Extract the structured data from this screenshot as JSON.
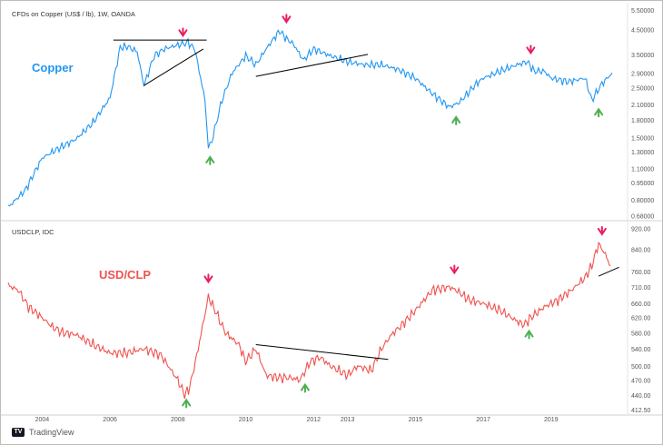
{
  "chart_data": [
    {
      "type": "line",
      "header": "CFDs on Copper (US$ / lb), 1W, OANDA",
      "series_label": "Copper",
      "color": "#2196F3",
      "scale": "log",
      "y_ticks": [
        "5.50000",
        "4.50000",
        "3.50000",
        "2.90000",
        "2.50000",
        "2.10000",
        "1.80000",
        "1.50000",
        "1.30000",
        "1.10000",
        "0.95000",
        "0.80000",
        "0.68000"
      ],
      "y_tick_values": [
        5.5,
        4.5,
        3.5,
        2.9,
        2.5,
        2.1,
        1.8,
        1.5,
        1.3,
        1.1,
        0.95,
        0.8,
        0.68
      ],
      "ylim": [
        0.67,
        5.6
      ],
      "x": [
        2003.0,
        2003.5,
        2004.0,
        2004.5,
        2005.0,
        2005.5,
        2006.0,
        2006.3,
        2006.5,
        2006.8,
        2007.0,
        2007.3,
        2007.6,
        2008.0,
        2008.3,
        2008.5,
        2008.8,
        2008.9,
        2009.0,
        2009.3,
        2009.6,
        2010.0,
        2010.3,
        2010.6,
        2011.0,
        2011.2,
        2011.4,
        2011.7,
        2012.0,
        2012.5,
        2013.0,
        2013.5,
        2014.0,
        2014.5,
        2015.0,
        2015.5,
        2016.0,
        2016.3,
        2016.8,
        2017.0,
        2017.5,
        2018.0,
        2018.3,
        2018.5,
        2018.8,
        2019.0,
        2019.5,
        2020.0,
        2020.2,
        2020.5,
        2020.8
      ],
      "values": [
        0.74,
        0.88,
        1.22,
        1.35,
        1.48,
        1.75,
        2.25,
        3.75,
        3.8,
        3.6,
        2.55,
        3.45,
        3.7,
        3.85,
        3.95,
        3.7,
        2.2,
        1.35,
        1.45,
        2.2,
        2.9,
        3.45,
        3.15,
        3.7,
        4.45,
        4.1,
        3.9,
        3.3,
        3.7,
        3.45,
        3.25,
        3.15,
        3.15,
        3.0,
        2.75,
        2.35,
        2.05,
        2.15,
        2.6,
        2.75,
        2.95,
        3.15,
        3.25,
        2.95,
        2.95,
        2.75,
        2.65,
        2.75,
        2.2,
        2.6,
        2.9
      ],
      "arrows": [
        {
          "x": 2008.15,
          "value": 4.35,
          "dir": "down"
        },
        {
          "x": 2008.95,
          "value": 1.2,
          "dir": "up"
        },
        {
          "x": 2011.2,
          "value": 5.0,
          "dir": "down"
        },
        {
          "x": 2016.2,
          "value": 1.8,
          "dir": "up"
        },
        {
          "x": 2018.4,
          "value": 3.65,
          "dir": "down"
        },
        {
          "x": 2020.4,
          "value": 1.95,
          "dir": "up"
        }
      ],
      "trendlines": [
        {
          "x1": 2006.1,
          "v1": 4.05,
          "x2": 2008.85,
          "v2": 4.05
        },
        {
          "x1": 2007.0,
          "v1": 2.55,
          "x2": 2008.75,
          "v2": 3.7
        },
        {
          "x1": 2010.3,
          "v1": 2.8,
          "x2": 2013.6,
          "v2": 3.5
        }
      ]
    },
    {
      "type": "line",
      "header": "USDCLP, IDC",
      "series_label": "USD/CLP",
      "color": "#EF5350",
      "scale": "log",
      "y_ticks": [
        "920.00",
        "840.00",
        "760.00",
        "710.00",
        "660.00",
        "620.00",
        "580.00",
        "540.00",
        "500.00",
        "470.00",
        "440.00",
        "412.50"
      ],
      "y_tick_values": [
        920,
        840,
        760,
        710,
        660,
        620,
        580,
        540,
        500,
        470,
        440,
        412.5
      ],
      "ylim": [
        409,
        930
      ],
      "x": [
        2003.0,
        2003.3,
        2003.6,
        2004.0,
        2004.3,
        2004.6,
        2005.0,
        2005.5,
        2006.0,
        2006.5,
        2007.0,
        2007.5,
        2008.0,
        2008.2,
        2008.35,
        2008.6,
        2008.9,
        2009.1,
        2009.4,
        2009.8,
        2010.0,
        2010.3,
        2010.6,
        2011.0,
        2011.3,
        2011.6,
        2011.9,
        2012.2,
        2012.5,
        2013.0,
        2013.3,
        2013.7,
        2014.0,
        2014.3,
        2014.6,
        2015.0,
        2015.5,
        2016.0,
        2016.2,
        2016.6,
        2017.0,
        2017.5,
        2018.0,
        2018.2,
        2018.4,
        2018.8,
        2019.2,
        2019.6,
        2020.0,
        2020.2,
        2020.4,
        2020.6,
        2020.75
      ],
      "values": [
        715,
        700,
        650,
        620,
        595,
        580,
        575,
        550,
        530,
        530,
        540,
        525,
        470,
        440,
        455,
        540,
        680,
        640,
        580,
        550,
        510,
        540,
        480,
        475,
        475,
        470,
        510,
        520,
        500,
        480,
        500,
        490,
        540,
        575,
        600,
        640,
        700,
        710,
        700,
        670,
        660,
        640,
        610,
        600,
        620,
        650,
        670,
        700,
        740,
        780,
        860,
        820,
        780
      ],
      "arrows": [
        {
          "x": 2008.25,
          "value": 425,
          "dir": "up"
        },
        {
          "x": 2008.9,
          "value": 735,
          "dir": "down"
        },
        {
          "x": 2011.75,
          "value": 455,
          "dir": "up"
        },
        {
          "x": 2016.15,
          "value": 765,
          "dir": "down"
        },
        {
          "x": 2018.35,
          "value": 577,
          "dir": "up"
        },
        {
          "x": 2020.5,
          "value": 908,
          "dir": "down"
        }
      ],
      "trendlines": [
        {
          "x1": 2010.3,
          "v1": 550,
          "x2": 2014.2,
          "v2": 515
        },
        {
          "x1": 2020.4,
          "v1": 745,
          "x2": 2021.0,
          "v2": 775
        }
      ]
    }
  ],
  "x_axis": {
    "ticks": [
      "2004",
      "2006",
      "2008",
      "2010",
      "2012",
      "2013",
      "2015",
      "2017",
      "2019"
    ],
    "tick_values": [
      2004,
      2006,
      2008,
      2010,
      2012,
      2013,
      2015,
      2017,
      2019
    ],
    "xlim": [
      2003.0,
      2021.2
    ]
  },
  "brand": {
    "name": "TradingView"
  },
  "colors": {
    "up_arrow": "#4CAF50",
    "down_arrow": "#E91E63",
    "trendline": "#000000"
  }
}
